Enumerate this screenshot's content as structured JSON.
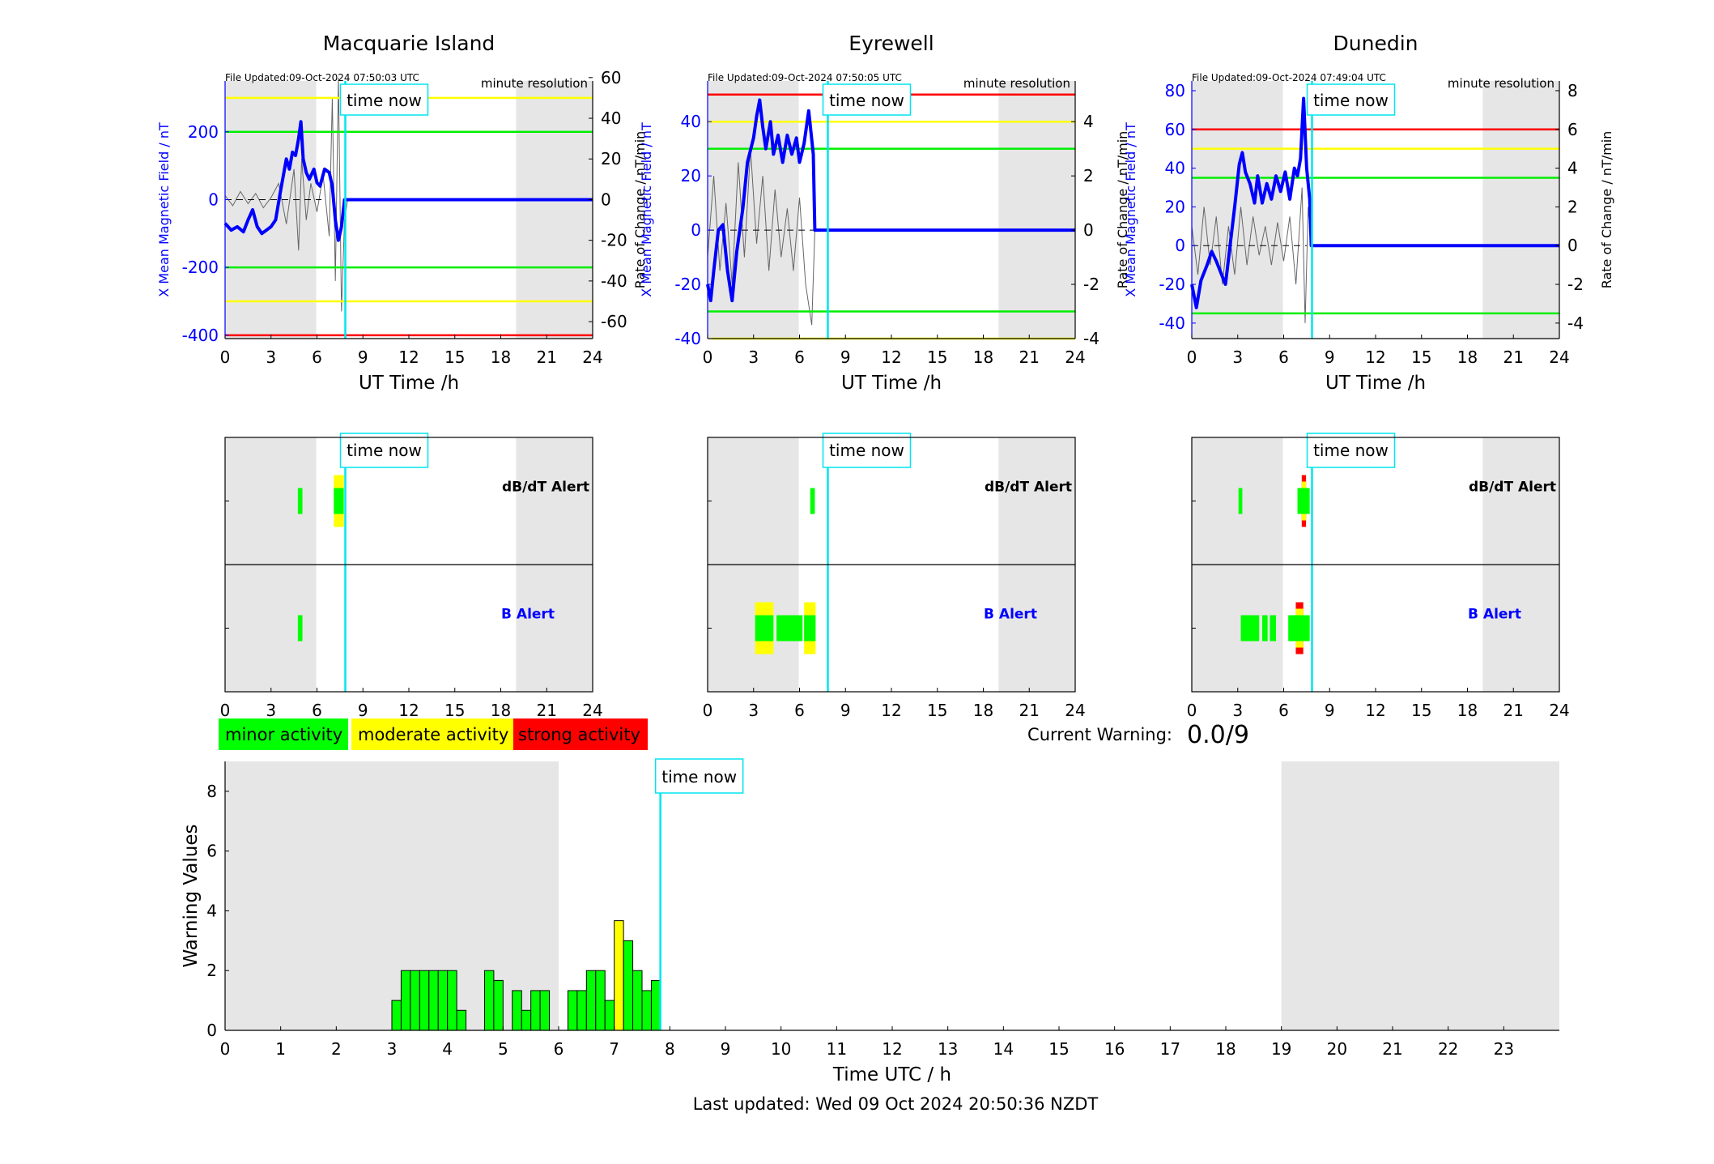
{
  "colors": {
    "mag_line": "#0000ff",
    "rate_line": "#666666",
    "threshold_red": "#ff0000",
    "threshold_yellow": "#ffff00",
    "threshold_green": "#00ee00",
    "minor": "#00ff00",
    "moderate": "#ffff00",
    "strong": "#ff0000",
    "night_shade": "#e6e6e6",
    "time_now": "#00e5ee"
  },
  "time_now_label": "time now",
  "file_updated_prefix": "File Updated:",
  "resolution_label": "minute resolution",
  "ut_xlabel": "UT Time /h",
  "left_ylabel": "X Mean Magnetic Field / nT",
  "right_ylabel": "Rate of Change / nT/min",
  "alert_labels": {
    "dbdt": "dB/dT Alert",
    "b": "B Alert"
  },
  "legend": [
    {
      "label": "minor activity",
      "color": "#00ff00"
    },
    {
      "label": "moderate activity",
      "color": "#ffff00"
    },
    {
      "label": "strong activity",
      "color": "#ff0000"
    }
  ],
  "current_warning": {
    "label": "Current Warning:",
    "value": "0.0/9"
  },
  "last_updated": "Last updated: Wed 09 Oct 2024 20:50:36 NZDT",
  "chart_data": [
    {
      "type": "line",
      "title": "Macquarie Island",
      "file_updated": "09-Oct-2024 07:50:03 UTC",
      "x_ticks": [
        0,
        3,
        6,
        9,
        12,
        15,
        18,
        21,
        24
      ],
      "xlim": [
        0,
        24
      ],
      "ylim": [
        -410,
        350
      ],
      "y_ticks": [
        -400,
        -200,
        0,
        200
      ],
      "y2lim": [
        -68.33,
        58.33
      ],
      "y2_ticks": [
        -60,
        -40,
        -20,
        0,
        20,
        40,
        60
      ],
      "night_shading": [
        [
          0,
          5.95
        ],
        [
          19,
          24
        ]
      ],
      "time_now": 7.85,
      "thresholds": [
        {
          "y": 300,
          "color": "yellow"
        },
        {
          "y": 200,
          "color": "green"
        },
        {
          "y": -200,
          "color": "green"
        },
        {
          "y": -300,
          "color": "yellow"
        },
        {
          "y": -400,
          "color": "red"
        }
      ],
      "mag_series": [
        [
          0,
          -70
        ],
        [
          0.4,
          -90
        ],
        [
          0.8,
          -80
        ],
        [
          1.2,
          -95
        ],
        [
          1.5,
          -60
        ],
        [
          1.8,
          -30
        ],
        [
          2.1,
          -80
        ],
        [
          2.4,
          -100
        ],
        [
          2.7,
          -90
        ],
        [
          3.0,
          -80
        ],
        [
          3.3,
          -60
        ],
        [
          3.6,
          20
        ],
        [
          4.0,
          120
        ],
        [
          4.2,
          90
        ],
        [
          4.4,
          140
        ],
        [
          4.6,
          130
        ],
        [
          4.8,
          180
        ],
        [
          4.95,
          230
        ],
        [
          5.1,
          120
        ],
        [
          5.3,
          80
        ],
        [
          5.5,
          60
        ],
        [
          5.8,
          90
        ],
        [
          6.0,
          50
        ],
        [
          6.2,
          40
        ],
        [
          6.5,
          90
        ],
        [
          6.8,
          80
        ],
        [
          7.0,
          40
        ],
        [
          7.2,
          -60
        ],
        [
          7.4,
          -120
        ],
        [
          7.6,
          -80
        ],
        [
          7.8,
          0
        ],
        [
          8.0,
          0
        ],
        [
          24,
          0
        ]
      ],
      "rate_series": [
        [
          0,
          2
        ],
        [
          0.5,
          -3
        ],
        [
          1.0,
          4
        ],
        [
          1.5,
          -2
        ],
        [
          2.0,
          3
        ],
        [
          2.5,
          -4
        ],
        [
          3.0,
          1
        ],
        [
          3.5,
          8
        ],
        [
          4.0,
          -12
        ],
        [
          4.5,
          15
        ],
        [
          4.8,
          -25
        ],
        [
          5.0,
          20
        ],
        [
          5.3,
          -10
        ],
        [
          5.6,
          8
        ],
        [
          6.0,
          -6
        ],
        [
          6.4,
          12
        ],
        [
          6.8,
          -18
        ],
        [
          7.0,
          50
        ],
        [
          7.2,
          -40
        ],
        [
          7.4,
          60
        ],
        [
          7.6,
          -55
        ],
        [
          7.8,
          -10
        ],
        [
          8.0,
          0
        ]
      ],
      "ref_line_until": 6.3
    },
    {
      "type": "line",
      "title": "Eyrewell",
      "file_updated": "09-Oct-2024 07:50:05 UTC",
      "x_ticks": [
        0,
        3,
        6,
        9,
        12,
        15,
        18,
        21,
        24
      ],
      "xlim": [
        0,
        24
      ],
      "ylim": [
        -40,
        55
      ],
      "y_ticks": [
        -40,
        -20,
        0,
        20,
        40
      ],
      "y2lim": [
        -4,
        5.5
      ],
      "y2_ticks": [
        -4,
        -2,
        0,
        2,
        4
      ],
      "night_shading": [
        [
          0,
          5.95
        ],
        [
          19,
          24
        ]
      ],
      "time_now": 7.85,
      "thresholds": [
        {
          "y": 50,
          "color": "red"
        },
        {
          "y": 40,
          "color": "yellow"
        },
        {
          "y": 30,
          "color": "green"
        },
        {
          "y": -30,
          "color": "green"
        },
        {
          "y": -40,
          "color": "yellow"
        }
      ],
      "mag_series": [
        [
          0,
          -20
        ],
        [
          0.2,
          -26
        ],
        [
          0.4,
          -15
        ],
        [
          0.7,
          0
        ],
        [
          1.0,
          2
        ],
        [
          1.3,
          -15
        ],
        [
          1.6,
          -26
        ],
        [
          1.9,
          -8
        ],
        [
          2.3,
          8
        ],
        [
          2.6,
          25
        ],
        [
          3.0,
          34
        ],
        [
          3.2,
          42
        ],
        [
          3.4,
          48
        ],
        [
          3.6,
          38
        ],
        [
          3.8,
          30
        ],
        [
          4.1,
          40
        ],
        [
          4.3,
          28
        ],
        [
          4.6,
          35
        ],
        [
          4.9,
          25
        ],
        [
          5.2,
          35
        ],
        [
          5.5,
          28
        ],
        [
          5.8,
          34
        ],
        [
          6.0,
          25
        ],
        [
          6.3,
          32
        ],
        [
          6.6,
          44
        ],
        [
          6.9,
          28
        ],
        [
          7.0,
          0
        ],
        [
          24,
          0
        ]
      ],
      "rate_series": [
        [
          0,
          -1
        ],
        [
          0.4,
          2
        ],
        [
          0.8,
          -1.5
        ],
        [
          1.2,
          1
        ],
        [
          1.6,
          -2
        ],
        [
          2.0,
          2.5
        ],
        [
          2.4,
          -1
        ],
        [
          2.8,
          3
        ],
        [
          3.2,
          -0.5
        ],
        [
          3.6,
          2
        ],
        [
          4.0,
          -1.5
        ],
        [
          4.4,
          1.5
        ],
        [
          4.8,
          -1
        ],
        [
          5.2,
          0.8
        ],
        [
          5.6,
          -1.5
        ],
        [
          6.0,
          1.2
        ],
        [
          6.4,
          -2
        ],
        [
          6.8,
          -3.5
        ],
        [
          7.0,
          0
        ]
      ],
      "ref_line_until": 7.0
    },
    {
      "type": "line",
      "title": "Dunedin",
      "file_updated": "09-Oct-2024 07:49:04 UTC",
      "x_ticks": [
        0,
        3,
        6,
        9,
        12,
        15,
        18,
        21,
        24
      ],
      "xlim": [
        0,
        24
      ],
      "ylim": [
        -48,
        85
      ],
      "y_ticks": [
        -40,
        -20,
        0,
        20,
        40,
        60,
        80
      ],
      "y2lim": [
        -4.8,
        8.5
      ],
      "y2_ticks": [
        -4,
        -2,
        0,
        2,
        4,
        6,
        8
      ],
      "night_shading": [
        [
          0,
          5.95
        ],
        [
          19,
          24
        ]
      ],
      "time_now": 7.85,
      "thresholds": [
        {
          "y": 60,
          "color": "red"
        },
        {
          "y": 50,
          "color": "yellow"
        },
        {
          "y": 35,
          "color": "green"
        },
        {
          "y": -35,
          "color": "green"
        }
      ],
      "mag_series": [
        [
          0,
          -20
        ],
        [
          0.3,
          -32
        ],
        [
          0.6,
          -18
        ],
        [
          1.0,
          -10
        ],
        [
          1.3,
          -3
        ],
        [
          1.6,
          -8
        ],
        [
          1.9,
          -14
        ],
        [
          2.2,
          -20
        ],
        [
          2.5,
          0
        ],
        [
          2.8,
          20
        ],
        [
          3.1,
          42
        ],
        [
          3.3,
          48
        ],
        [
          3.5,
          38
        ],
        [
          3.8,
          32
        ],
        [
          4.1,
          22
        ],
        [
          4.3,
          36
        ],
        [
          4.6,
          22
        ],
        [
          4.9,
          32
        ],
        [
          5.2,
          24
        ],
        [
          5.5,
          36
        ],
        [
          5.8,
          28
        ],
        [
          6.1,
          38
        ],
        [
          6.4,
          24
        ],
        [
          6.7,
          40
        ],
        [
          6.9,
          36
        ],
        [
          7.1,
          45
        ],
        [
          7.3,
          76
        ],
        [
          7.5,
          40
        ],
        [
          7.7,
          24
        ],
        [
          7.8,
          0
        ],
        [
          24,
          0
        ]
      ],
      "rate_series": [
        [
          0,
          1
        ],
        [
          0.4,
          -1.5
        ],
        [
          0.8,
          2
        ],
        [
          1.2,
          -1
        ],
        [
          1.6,
          1.5
        ],
        [
          2.0,
          -2
        ],
        [
          2.4,
          1
        ],
        [
          2.8,
          -1.5
        ],
        [
          3.2,
          2
        ],
        [
          3.6,
          -1
        ],
        [
          4.0,
          1.5
        ],
        [
          4.4,
          -0.5
        ],
        [
          4.8,
          1
        ],
        [
          5.2,
          -1
        ],
        [
          5.6,
          1.2
        ],
        [
          6.0,
          -0.8
        ],
        [
          6.4,
          1.5
        ],
        [
          6.8,
          -2
        ],
        [
          7.2,
          3
        ],
        [
          7.4,
          -4
        ],
        [
          7.6,
          2
        ],
        [
          7.8,
          0
        ]
      ],
      "ref_line_until": 7.5
    },
    {
      "type": "bar",
      "title": "",
      "xlim": [
        0,
        24
      ],
      "x_ticks": [
        0,
        1,
        2,
        3,
        4,
        5,
        6,
        7,
        8,
        9,
        10,
        11,
        12,
        13,
        14,
        15,
        16,
        17,
        18,
        19,
        20,
        21,
        22,
        23
      ],
      "ylim": [
        0,
        9
      ],
      "y_ticks": [
        0,
        2,
        4,
        6,
        8
      ],
      "xlabel": "Time UTC / h",
      "ylabel": "Warning Values",
      "night_shading": [
        [
          0,
          6
        ],
        [
          19,
          24
        ]
      ],
      "time_now": 7.83,
      "bar_width": 0.1667,
      "bars": [
        {
          "x": 3.0,
          "value": 1.0,
          "level": "minor"
        },
        {
          "x": 3.1667,
          "value": 2.0,
          "level": "minor"
        },
        {
          "x": 3.3333,
          "value": 2.0,
          "level": "minor"
        },
        {
          "x": 3.5,
          "value": 2.0,
          "level": "minor"
        },
        {
          "x": 3.6667,
          "value": 2.0,
          "level": "minor"
        },
        {
          "x": 3.8333,
          "value": 2.0,
          "level": "minor"
        },
        {
          "x": 4.0,
          "value": 2.0,
          "level": "minor"
        },
        {
          "x": 4.1667,
          "value": 0.67,
          "level": "minor"
        },
        {
          "x": 4.6667,
          "value": 2.0,
          "level": "minor"
        },
        {
          "x": 4.8333,
          "value": 1.67,
          "level": "minor"
        },
        {
          "x": 5.1667,
          "value": 1.33,
          "level": "minor"
        },
        {
          "x": 5.3333,
          "value": 0.67,
          "level": "minor"
        },
        {
          "x": 5.5,
          "value": 1.33,
          "level": "minor"
        },
        {
          "x": 5.6667,
          "value": 1.33,
          "level": "minor"
        },
        {
          "x": 6.1667,
          "value": 1.33,
          "level": "minor"
        },
        {
          "x": 6.3333,
          "value": 1.33,
          "level": "minor"
        },
        {
          "x": 6.5,
          "value": 2.0,
          "level": "minor"
        },
        {
          "x": 6.6667,
          "value": 2.0,
          "level": "minor"
        },
        {
          "x": 6.8333,
          "value": 1.0,
          "level": "minor"
        },
        {
          "x": 7.0,
          "value": 3.67,
          "level": "moderate"
        },
        {
          "x": 7.1667,
          "value": 3.0,
          "level": "minor"
        },
        {
          "x": 7.3333,
          "value": 2.0,
          "level": "minor"
        },
        {
          "x": 7.5,
          "value": 1.33,
          "level": "minor"
        },
        {
          "x": 7.6667,
          "value": 1.67,
          "level": "minor"
        }
      ]
    }
  ],
  "alerts": [
    {
      "station": "Macquarie Island",
      "dbdt": [
        {
          "x0": 4.75,
          "x1": 5.05,
          "level": "minor"
        },
        {
          "x0": 7.1,
          "x1": 7.75,
          "level": "minor",
          "outer": "moderate"
        }
      ],
      "b": [
        {
          "x0": 4.75,
          "x1": 5.05,
          "level": "minor"
        }
      ]
    },
    {
      "station": "Eyrewell",
      "dbdt": [
        {
          "x0": 6.7,
          "x1": 7.0,
          "level": "minor"
        }
      ],
      "b": [
        {
          "x0": 3.1,
          "x1": 4.3,
          "level": "minor",
          "outer": "moderate"
        },
        {
          "x0": 4.5,
          "x1": 6.2,
          "level": "minor"
        },
        {
          "x0": 6.3,
          "x1": 7.05,
          "level": "minor",
          "outer": "moderate"
        }
      ]
    },
    {
      "station": "Dunedin",
      "dbdt": [
        {
          "x0": 3.05,
          "x1": 3.3,
          "level": "minor"
        },
        {
          "x0": 6.9,
          "x1": 7.7,
          "level": "minor",
          "outer": "strong",
          "mid": "moderate"
        }
      ],
      "b": [
        {
          "x0": 3.2,
          "x1": 4.4,
          "level": "minor"
        },
        {
          "x0": 4.6,
          "x1": 4.95,
          "level": "minor"
        },
        {
          "x0": 5.1,
          "x1": 5.5,
          "level": "minor"
        },
        {
          "x0": 6.3,
          "x1": 7.7,
          "level": "minor",
          "outer": "strong",
          "mid": "moderate"
        }
      ]
    }
  ]
}
